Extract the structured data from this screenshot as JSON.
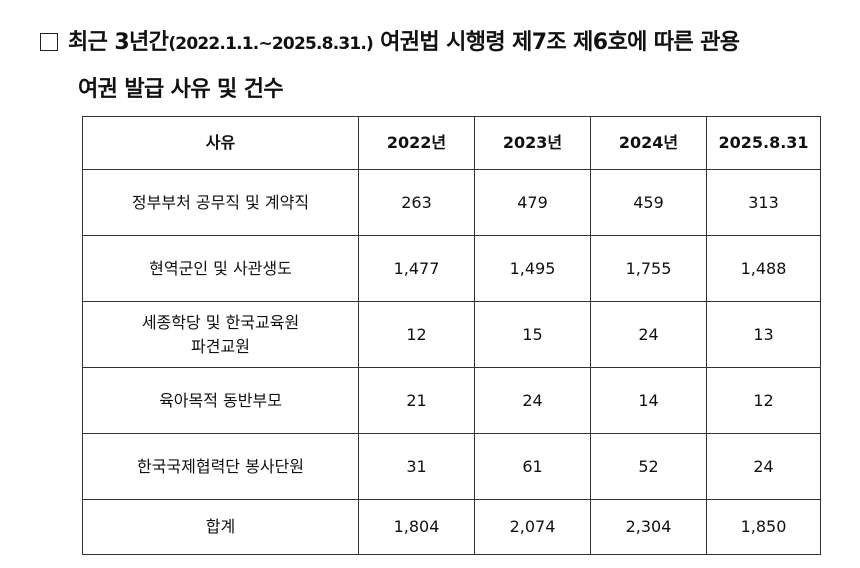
{
  "title": {
    "line1_prefix": "최근 3년간",
    "line1_period": "(2022.1.1.~2025.8.31.)",
    "line1_suffix": "여권법 시행령 제7조 제6호에 따른 관용",
    "line2": "여권 발급 사유 및 건수"
  },
  "table": {
    "headers": [
      "사유",
      "2022년",
      "2023년",
      "2024년",
      "2025.8.31"
    ],
    "rows": [
      {
        "reason": "정부부처 공무직 및 계약직",
        "values": [
          "263",
          "479",
          "459",
          "313"
        ]
      },
      {
        "reason": "현역군인 및 사관생도",
        "values": [
          "1,477",
          "1,495",
          "1,755",
          "1,488"
        ]
      },
      {
        "reason_line1": "세종학당 및 한국교육원",
        "reason_line2": "파견교원",
        "values": [
          "12",
          "15",
          "24",
          "13"
        ]
      },
      {
        "reason": "육아목적 동반부모",
        "values": [
          "21",
          "24",
          "14",
          "12"
        ]
      },
      {
        "reason": "한국국제협력단 봉사단원",
        "values": [
          "31",
          "61",
          "52",
          "24"
        ]
      }
    ],
    "total": {
      "label": "합계",
      "values": [
        "1,804",
        "2,074",
        "2,304",
        "1,850"
      ]
    }
  }
}
